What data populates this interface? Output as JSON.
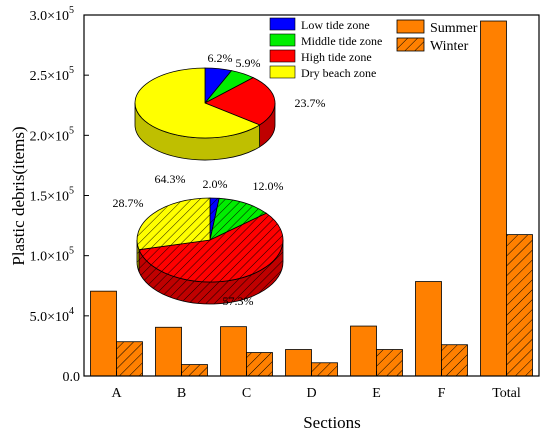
{
  "chart_data": {
    "type": "bar",
    "title": "",
    "xlabel": "Sections",
    "ylabel": "Plastic debris(items)",
    "ylim": [
      0,
      300000
    ],
    "yticks": [
      {
        "value": 0,
        "label": "0.0"
      },
      {
        "value": 50000,
        "label": "5.0×10",
        "exp": "4"
      },
      {
        "value": 100000,
        "label": "1.0×10",
        "exp": "5"
      },
      {
        "value": 150000,
        "label": "1.5×10",
        "exp": "5"
      },
      {
        "value": 200000,
        "label": "2.0×10",
        "exp": "5"
      },
      {
        "value": 250000,
        "label": "2.5×10",
        "exp": "5"
      },
      {
        "value": 300000,
        "label": "3.0×10",
        "exp": "5"
      }
    ],
    "categories": [
      "A",
      "B",
      "C",
      "D",
      "E",
      "F",
      "Total"
    ],
    "series": [
      {
        "name": "Summer",
        "color": "#ff8000",
        "hatch": false,
        "values": [
          70500,
          40500,
          41000,
          22000,
          41500,
          78500,
          295000
        ]
      },
      {
        "name": "Winter",
        "color": "#ff8000",
        "hatch": true,
        "values": [
          28500,
          9500,
          19500,
          11000,
          22000,
          26000,
          117500
        ]
      }
    ],
    "legend_position": "top-right",
    "inset_pies": {
      "legend": [
        {
          "name": "Low tide zone",
          "color": "#0000ff"
        },
        {
          "name": "Middle tide zone",
          "color": "#00ee00"
        },
        {
          "name": "High tide zone",
          "color": "#ff0000"
        },
        {
          "name": "Dry beach zone",
          "color": "#ffff00"
        }
      ],
      "pies": [
        {
          "season": "Summer",
          "hatch": false,
          "slices": [
            {
              "zone": "Low tide zone",
              "value": 6.2,
              "label": "6.2%"
            },
            {
              "zone": "Middle tide zone",
              "value": 5.9,
              "label": "5.9%"
            },
            {
              "zone": "High tide zone",
              "value": 23.7,
              "label": "23.7%"
            },
            {
              "zone": "Dry beach zone",
              "value": 64.3,
              "label": "64.3%"
            }
          ]
        },
        {
          "season": "Winter",
          "hatch": true,
          "slices": [
            {
              "zone": "Low tide zone",
              "value": 2.0,
              "label": "2.0%"
            },
            {
              "zone": "Middle tide zone",
              "value": 12.0,
              "label": "12.0%"
            },
            {
              "zone": "High tide zone",
              "value": 57.3,
              "label": "57.3%"
            },
            {
              "zone": "Dry beach zone",
              "value": 28.7,
              "label": "28.7%"
            }
          ]
        }
      ]
    }
  }
}
